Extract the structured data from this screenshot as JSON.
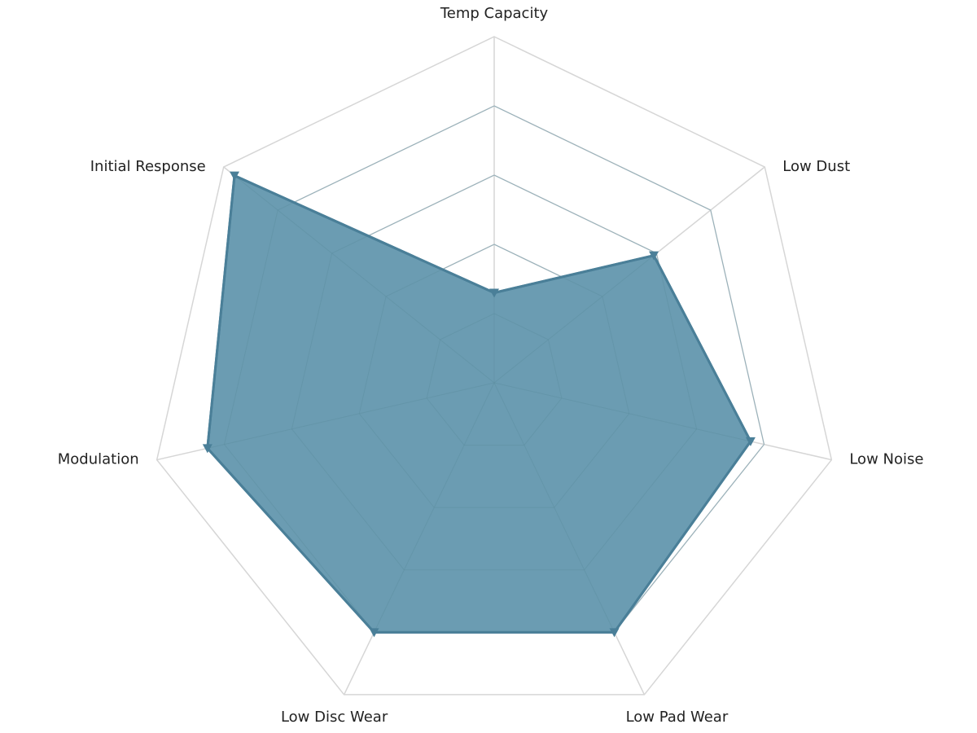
{
  "chart_data": {
    "type": "radar",
    "axes": [
      "Temp Capacity",
      "Low Dust",
      "Low Noise",
      "Low Pad Wear",
      "Low Disc Wear",
      "Modulation",
      "Initial Response"
    ],
    "series": [
      {
        "values": [
          2.6,
          5.9,
          7.6,
          8.0,
          8.0,
          8.5,
          9.6
        ]
      }
    ],
    "rlim": [
      0,
      10
    ],
    "rings": 5,
    "grid": true,
    "legend": "none",
    "colors": {
      "fill": "#6b9cb2",
      "stroke": "#4a7f98",
      "marker": "#4a7f98",
      "grid": "#d6d6d6"
    }
  }
}
